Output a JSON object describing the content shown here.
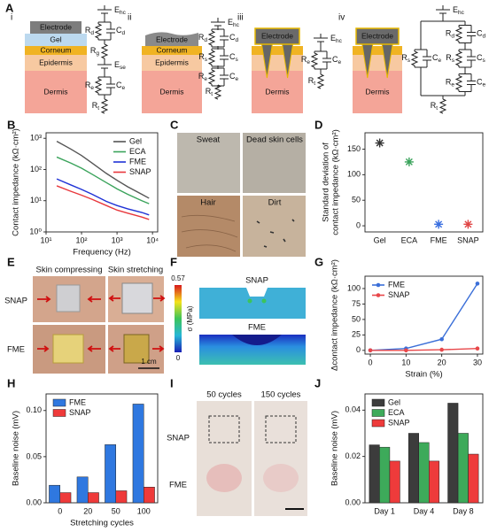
{
  "schematic": {
    "panel": "A",
    "subpanels": [
      {
        "label": "i",
        "layers": [
          "Electrode",
          "Gel",
          "Corneum",
          "Epidermis",
          "Dermis"
        ],
        "circuit": {
          "top": {
            "s": "E",
            "sub": "hc"
          },
          "branches": [
            [
              {
                "R": {
                  "s": "R",
                  "sub": "d"
                },
                "C": {
                  "s": "C",
                  "sub": "d"
                }
              },
              {
                "R": {
                  "s": "R",
                  "sub": "g"
                }
              },
              {
                "E": {
                  "s": "E",
                  "sub": "se"
                }
              },
              {
                "R": {
                  "s": "R",
                  "sub": "e"
                },
                "C": {
                  "s": "C",
                  "sub": "e"
                }
              }
            ]
          ],
          "bottom": {
            "s": "R",
            "sub": "t"
          }
        }
      },
      {
        "label": "ii",
        "layers": [
          "Electrode",
          "Corneum",
          "Epidermis",
          "Dermis"
        ],
        "circuit": {
          "top": {
            "s": "E",
            "sub": "hc"
          },
          "branches": [
            [
              {
                "R": {
                  "s": "R",
                  "sub": "d"
                },
                "C": {
                  "s": "C",
                  "sub": "d"
                }
              },
              {
                "R": {
                  "s": "R",
                  "sub": "s"
                },
                "C": {
                  "s": "C",
                  "sub": "s"
                }
              },
              {
                "R": {
                  "s": "R",
                  "sub": "e"
                },
                "C": {
                  "s": "C",
                  "sub": "e"
                }
              }
            ]
          ],
          "bottom": {
            "s": "R",
            "sub": "t"
          }
        }
      },
      {
        "label": "iii",
        "layers": [
          "Electrode",
          "Dermis"
        ],
        "circuit": {
          "top": {
            "s": "E",
            "sub": "hc"
          },
          "branches": [
            [
              {
                "R": {
                  "s": "R",
                  "sub": "e"
                },
                "C": {
                  "s": "C",
                  "sub": "e"
                }
              }
            ]
          ],
          "bottom": {
            "s": "R",
            "sub": "t"
          }
        }
      },
      {
        "label": "iv",
        "layers": [
          "Electrode",
          "Dermis"
        ],
        "circuit": {
          "top": {
            "s": "E",
            "sub": "hc"
          },
          "branches": [
            [
              {
                "R": {
                  "s": "R",
                  "sub": "s"
                },
                "C": {
                  "s": "C",
                  "sub": "e"
                }
              }
            ],
            [
              {
                "R": {
                  "s": "R",
                  "sub": "d"
                },
                "C": {
                  "s": "C",
                  "sub": "d"
                }
              },
              {
                "R": {
                  "s": "R",
                  "sub": "s"
                },
                "C": {
                  "s": "C",
                  "sub": "s"
                }
              },
              {
                "R": {
                  "s": "R",
                  "sub": "e"
                },
                "C": {
                  "s": "C",
                  "sub": "e"
                }
              }
            ]
          ],
          "bottom": {
            "s": "R",
            "sub": "t"
          }
        }
      }
    ]
  },
  "contaminants": {
    "panel": "C",
    "labels": [
      "Sweat",
      "Dead skin cells",
      "Hair",
      "Dirt"
    ]
  },
  "stretch_photos": {
    "panel": "E",
    "columns": [
      "Skin compressing",
      "Skin stretching"
    ],
    "rows": [
      "SNAP",
      "FME"
    ],
    "scale": "1 cm"
  },
  "simulation": {
    "panel": "F",
    "models": [
      "SNAP",
      "FME"
    ],
    "colorbar": {
      "max": 0.57,
      "min": 0,
      "label": "σ (MPa)"
    }
  },
  "cycle_photos": {
    "panel": "I",
    "columns": [
      "50 cycles",
      "150 cycles"
    ],
    "rows": [
      "SNAP",
      "FME"
    ]
  },
  "chart_data": [
    {
      "type": "line",
      "panel": "B",
      "xlog": true,
      "ylog": true,
      "x": [
        20,
        50,
        100,
        200,
        500,
        1000,
        2000,
        5000,
        8000
      ],
      "series": [
        {
          "name": "Gel",
          "color": "#555555",
          "values": [
            800,
            450,
            280,
            160,
            75,
            45,
            28,
            16,
            12
          ]
        },
        {
          "name": "ECA",
          "color": "#3aa35b",
          "values": [
            250,
            160,
            110,
            70,
            38,
            24,
            16,
            10,
            8
          ]
        },
        {
          "name": "FME",
          "color": "#1f32d6",
          "values": [
            50,
            32,
            23,
            16,
            9.5,
            7,
            5.5,
            4.2,
            3.5
          ]
        },
        {
          "name": "SNAP",
          "color": "#e8383d",
          "values": [
            30,
            20,
            15,
            11,
            7,
            5,
            4,
            3,
            2.5
          ]
        }
      ],
      "xlim": [
        10,
        14000
      ],
      "xticks": [
        {
          "value": 10,
          "label": "10¹"
        },
        {
          "value": 100,
          "label": "10²"
        },
        {
          "value": 1000,
          "label": "10³"
        },
        {
          "value": 10000,
          "label": "10⁴"
        }
      ],
      "ylim": [
        1,
        1500
      ],
      "yticks": [
        {
          "value": 1,
          "label": "10⁰"
        },
        {
          "value": 10,
          "label": "10¹"
        },
        {
          "value": 100,
          "label": "10²"
        },
        {
          "value": 1000,
          "label": "10³"
        }
      ],
      "xlabel": "Frequency (Hz)",
      "ylabel": "Contact impedance (kΩ·cm²)",
      "legend": "upper right"
    },
    {
      "type": "scatter",
      "panel": "D",
      "marker": "asterisk",
      "categories": [
        "Gel",
        "ECA",
        "FME",
        "SNAP"
      ],
      "values": [
        162,
        125,
        3,
        3
      ],
      "colors": [
        "#333333",
        "#3aa35b",
        "#3a6fe0",
        "#e04545"
      ],
      "ylim": [
        -12,
        182
      ],
      "yticks": [
        0,
        50,
        100,
        150
      ],
      "ylabel": [
        "Standard deviation of",
        "contact impedance (kΩ·cm²)"
      ]
    },
    {
      "type": "line",
      "panel": "G",
      "markers": true,
      "x": [
        0,
        10,
        20,
        30
      ],
      "xlim": [
        -1.5,
        31.5
      ],
      "xticks": [
        0,
        10,
        20,
        30
      ],
      "series": [
        {
          "name": "FME",
          "color": "#3b6fd8",
          "values": [
            0,
            3,
            18,
            108
          ]
        },
        {
          "name": "SNAP",
          "color": "#e8474a",
          "values": [
            0,
            0,
            1,
            3
          ]
        }
      ],
      "ylim": [
        -6,
        120
      ],
      "yticks": [
        0,
        25,
        50,
        75,
        100
      ],
      "xlabel": "Strain (%)",
      "ylabel": "Δcontact impedance (kΩ·cm²)",
      "legend": "upper left"
    },
    {
      "type": "bar",
      "panel": "H",
      "categories": [
        "0",
        "20",
        "50",
        "100"
      ],
      "series": [
        {
          "name": "FME",
          "color": "#2f78e0",
          "values": [
            0.019,
            0.028,
            0.063,
            0.107
          ]
        },
        {
          "name": "SNAP",
          "color": "#ef3a3a",
          "values": [
            0.011,
            0.011,
            0.013,
            0.017
          ]
        }
      ],
      "ylim": [
        0,
        0.118
      ],
      "yticks": [
        {
          "value": 0,
          "label": "0.00"
        },
        0.05,
        {
          "value": 0.1,
          "label": "0.10"
        }
      ],
      "xlabel": "Stretching cycles",
      "ylabel": "Baseline noise (mV)",
      "legend": "upper left"
    },
    {
      "type": "bar",
      "panel": "J",
      "categories": [
        "Day 1",
        "Day 4",
        "Day 8"
      ],
      "series": [
        {
          "name": "Gel",
          "color": "#3c3c3c",
          "values": [
            0.025,
            0.03,
            0.043
          ]
        },
        {
          "name": "ECA",
          "color": "#3daa5a",
          "values": [
            0.024,
            0.026,
            0.03
          ]
        },
        {
          "name": "SNAP",
          "color": "#ee3b3b",
          "values": [
            0.018,
            0.018,
            0.021
          ]
        }
      ],
      "ylim": [
        0,
        0.047
      ],
      "yticks": [
        {
          "value": 0,
          "label": "0.00"
        },
        0.02,
        0.04
      ],
      "ylabel": "Baseline noise (mV)",
      "legend": "upper left"
    }
  ]
}
